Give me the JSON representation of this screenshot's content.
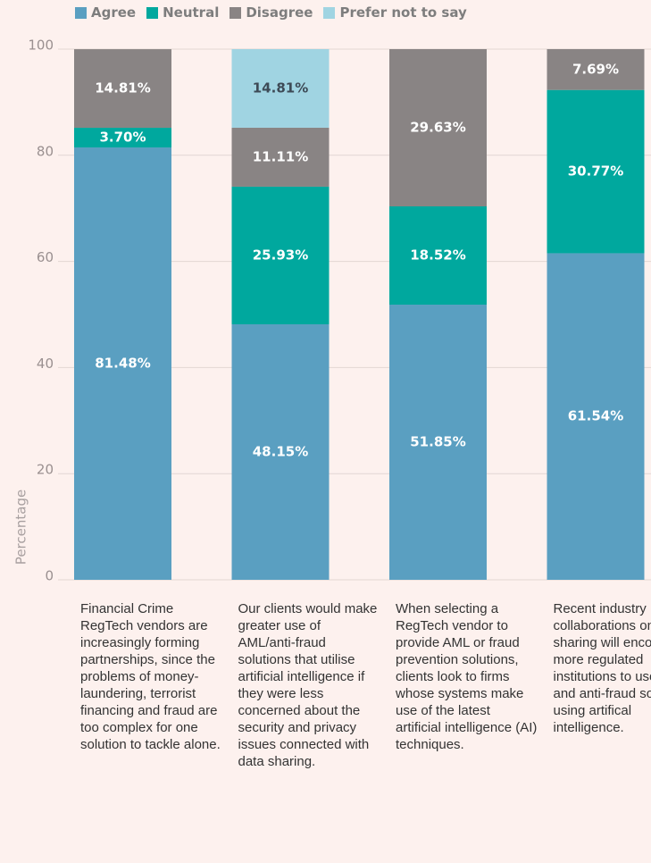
{
  "chart_data": {
    "type": "stacked_bar",
    "y_label": "Percentage",
    "categories": [
      "Financial Crime RegTech vendors are increasingly forming partnerships, since the problems of money-laundering, terrorist financing and fraud are too complex for one solution to tackle alone.",
      "Our clients would make greater use of AML/anti-fraud solutions that utilise artificial intelligence if they were less concerned about the security and privacy issues connected with data sharing.",
      "When selecting a RegTech vendor to provide AML or fraud prevention solutions, clients look to firms whose systems make use of the latest artificial intelligence (AI) techniques.",
      "Recent industry collaborations on data sharing will encourage more regulated institutions to use AML and anti-fraud solutions using artifical intelligence."
    ],
    "series": [
      {
        "name": "Agree",
        "color": "#5a9fc1",
        "label_color": "#ffffff",
        "values": [
          81.48,
          48.15,
          51.85,
          61.54
        ],
        "value_labels": [
          "81.48%",
          "48.15%",
          "51.85%",
          "61.54%"
        ]
      },
      {
        "name": "Neutral",
        "color": "#00a89e",
        "label_color": "#ffffff",
        "values": [
          3.7,
          25.93,
          18.52,
          30.77
        ],
        "value_labels": [
          "3.70%",
          "25.93%",
          "18.52%",
          "30.77%"
        ]
      },
      {
        "name": "Disagree",
        "color": "#898484",
        "label_color": "#ffffff",
        "values": [
          14.81,
          11.11,
          29.63,
          7.69
        ],
        "value_labels": [
          "14.81%",
          "11.11%",
          "29.63%",
          "7.69%"
        ]
      },
      {
        "name": "Prefer not to say",
        "color": "#a0d4e2",
        "label_color": "#3d4a56",
        "values": [
          null,
          14.81,
          null,
          null
        ],
        "value_labels": [
          null,
          "14.81%",
          null,
          null
        ]
      }
    ],
    "ylim": [
      0,
      100
    ],
    "yticks": [
      0,
      20,
      40,
      60,
      80,
      100
    ],
    "grid": true,
    "legend": "top"
  }
}
